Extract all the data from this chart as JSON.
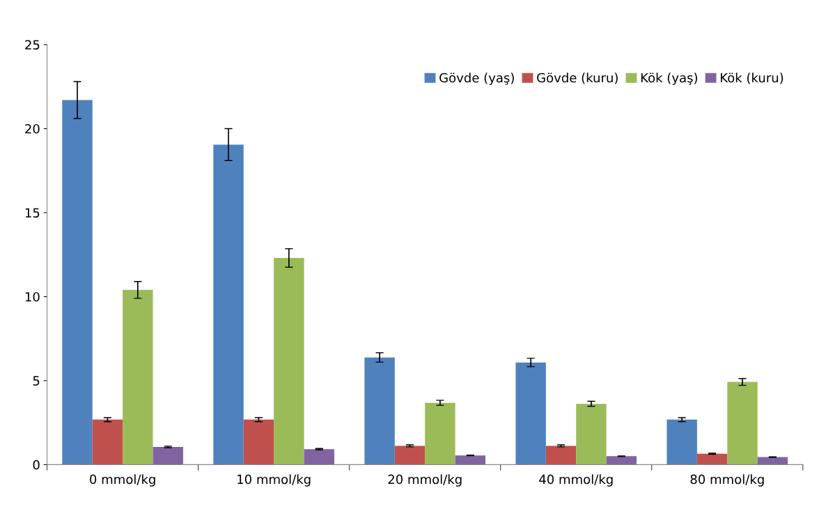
{
  "chart_data": {
    "type": "bar",
    "categories": [
      "0 mmol/kg",
      "10 mmol/kg",
      "20 mmol/kg",
      "40 mmol/kg",
      "80 mmol/kg"
    ],
    "series": [
      {
        "name": "Gövde (yaş)",
        "color": "#4f81bd",
        "values": [
          21.7,
          19.05,
          6.38,
          6.08,
          2.68
        ],
        "errors": [
          1.1,
          0.95,
          0.28,
          0.25,
          0.12
        ]
      },
      {
        "name": "Gövde (kuru)",
        "color": "#c0504d",
        "values": [
          2.68,
          2.68,
          1.12,
          1.12,
          0.65
        ],
        "errors": [
          0.12,
          0.12,
          0.06,
          0.06,
          0.03
        ]
      },
      {
        "name": "Kök (yaş)",
        "color": "#9bbb59",
        "values": [
          10.4,
          12.3,
          3.68,
          3.62,
          4.92
        ],
        "errors": [
          0.5,
          0.55,
          0.15,
          0.15,
          0.2
        ]
      },
      {
        "name": "Kök (kuru)",
        "color": "#8064a2",
        "values": [
          1.05,
          0.92,
          0.55,
          0.5,
          0.45
        ],
        "errors": [
          0.05,
          0.04,
          0.02,
          0.02,
          0.02
        ]
      }
    ],
    "ylim": [
      0,
      25
    ],
    "yticks": [
      0,
      5,
      10,
      15,
      20,
      25
    ],
    "grid": false,
    "legend": "top right"
  }
}
